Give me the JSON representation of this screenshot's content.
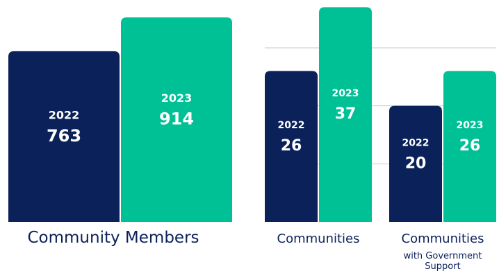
{
  "chart_data": [
    {
      "type": "bar",
      "categories": [
        "2022",
        "2023"
      ],
      "values": [
        763,
        914
      ],
      "colors": [
        "#0b2159",
        "#00c096"
      ],
      "xlabel": "Community Members",
      "ylim": [
        0,
        930
      ]
    },
    {
      "type": "grouped_bar",
      "categories": [
        "Communities",
        "Communities"
      ],
      "category_sublabels": [
        null,
        "with Government Support"
      ],
      "series": [
        {
          "name": "2022",
          "color": "#0b2159",
          "values": [
            26,
            20
          ]
        },
        {
          "name": "2023",
          "color": "#00c096",
          "values": [
            37,
            26
          ]
        }
      ],
      "ylim": [
        0,
        38
      ],
      "yticks": [
        10,
        20,
        30
      ],
      "grid": true
    }
  ]
}
